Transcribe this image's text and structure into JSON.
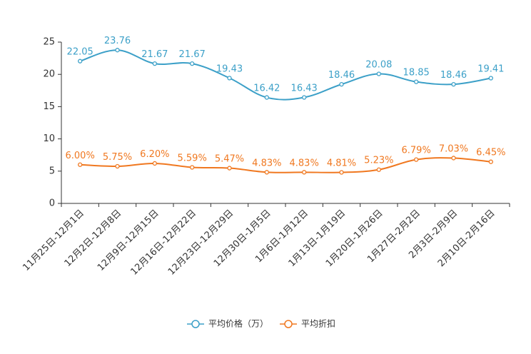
{
  "chart_data": {
    "type": "line",
    "title": "",
    "xlabel": "",
    "ylabel": "",
    "ylim": [
      0,
      25
    ],
    "yticks": [
      0,
      5,
      10,
      15,
      20,
      25
    ],
    "grid": false,
    "legend_position": "bottom",
    "categories": [
      "11月25日-12月1日",
      "12月2日-12月8日",
      "12月9日-12月15日",
      "12月16日-12月22日",
      "12月23日-12月29日",
      "12月30日-1月5日",
      "1月6日-1月12日",
      "1月13日-1月19日",
      "1月20日-1月26日",
      "1月27日-2月2日",
      "2月3日-2月9日",
      "2月10日-2月16日"
    ],
    "series": [
      {
        "name": "平均价格（万）",
        "color": "#3ca0c8",
        "values": [
          22.05,
          23.76,
          21.67,
          21.67,
          19.43,
          16.42,
          16.43,
          18.46,
          20.08,
          18.85,
          18.46,
          19.41
        ],
        "labels": [
          "22.05",
          "23.76",
          "21.67",
          "21.67",
          "19.43",
          "16.42",
          "16.43",
          "18.46",
          "20.08",
          "18.85",
          "18.46",
          "19.41"
        ]
      },
      {
        "name": "平均折扣",
        "color": "#f07820",
        "values": [
          6.0,
          5.75,
          6.2,
          5.59,
          5.47,
          4.83,
          4.83,
          4.81,
          5.23,
          6.79,
          7.03,
          6.45
        ],
        "labels": [
          "6.00%",
          "5.75%",
          "6.20%",
          "5.59%",
          "5.47%",
          "4.83%",
          "4.83%",
          "4.81%",
          "5.23%",
          "6.79%",
          "7.03%",
          "6.45%"
        ]
      }
    ]
  }
}
